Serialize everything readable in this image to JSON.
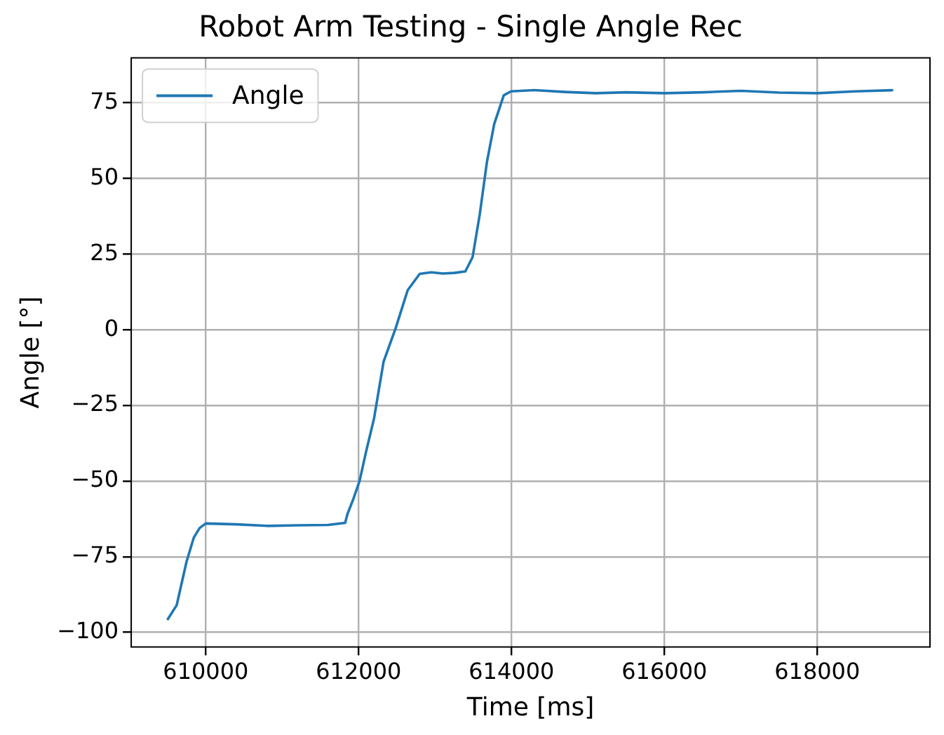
{
  "chart_data": {
    "type": "line",
    "title": "Robot Arm Testing - Single Angle Rec",
    "xlabel": "Time [ms]",
    "ylabel": "Angle [°]",
    "xlim": [
      609025,
      619475
    ],
    "ylim": [
      -104.8,
      89.9
    ],
    "xticks": [
      610000,
      612000,
      614000,
      616000,
      618000
    ],
    "yticks": [
      -100,
      -75,
      -50,
      -25,
      0,
      25,
      50,
      75
    ],
    "grid": true,
    "legend": "top left",
    "series": [
      {
        "name": "Angle",
        "color": "#1f77b4",
        "x": [
          609497,
          609620,
          609749,
          609843,
          609920,
          610000,
          610400,
          610800,
          611200,
          611600,
          611824,
          611855,
          611930,
          612013,
          612100,
          612201,
          612327,
          612484,
          612642,
          612799,
          612950,
          613100,
          613250,
          613396,
          613491,
          613585,
          613679,
          613774,
          613899,
          613994,
          614300,
          614700,
          615100,
          615500,
          616000,
          616500,
          617000,
          617500,
          618000,
          618500,
          618994
        ],
        "values": [
          -95.9,
          -91,
          -76.6,
          -68.7,
          -65.5,
          -64,
          -64.3,
          -64.8,
          -64.6,
          -64.5,
          -63.8,
          -60.8,
          -56,
          -49.9,
          -40,
          -29.4,
          -10.5,
          0.5,
          13.1,
          18.5,
          19,
          18.6,
          18.8,
          19.3,
          24,
          38.2,
          55.5,
          68,
          77.5,
          78.8,
          79.2,
          78.6,
          78.2,
          78.5,
          78.2,
          78.5,
          79,
          78.4,
          78.2,
          78.8,
          79.2
        ]
      }
    ]
  }
}
